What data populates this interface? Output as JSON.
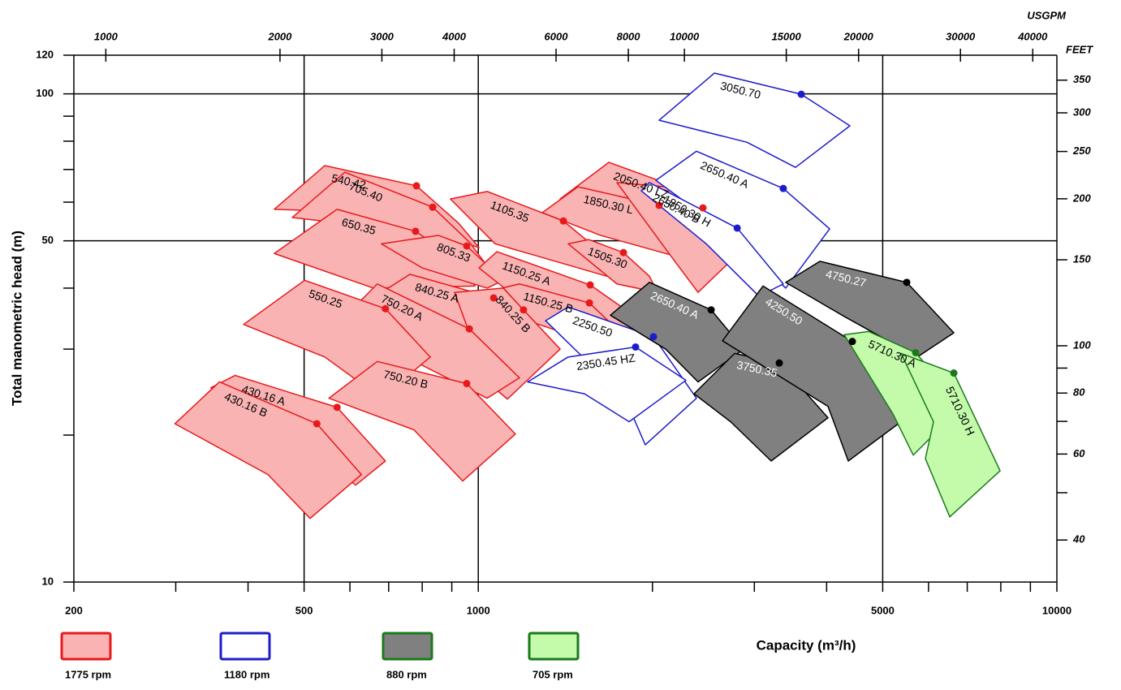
{
  "chart_data": {
    "type": "region",
    "xlabel": "Capacity  (m³/h)",
    "ylabel": "Total manometric head (m)",
    "x2label": "USGPM",
    "y2label": "FEET",
    "log_x": true,
    "log_y": true,
    "xlim": [
      200,
      10000
    ],
    "ylim": [
      10,
      120
    ],
    "xticks": [
      200,
      500,
      1000,
      5000,
      10000
    ],
    "xminor": [
      300,
      400,
      600,
      700,
      800,
      900,
      2000,
      3000,
      4000,
      6000,
      7000,
      8000,
      9000
    ],
    "yticks": [
      10,
      50,
      100,
      120
    ],
    "yminor": [
      20,
      30,
      40,
      60,
      70,
      80,
      90
    ],
    "xgrid": [
      500,
      1000,
      5000
    ],
    "ygrid": [
      50,
      100
    ],
    "x2lim": [
      880.6,
      44030
    ],
    "x2ticks": [
      1000,
      2000,
      3000,
      4000,
      6000,
      8000,
      10000,
      15000,
      20000,
      30000,
      40000
    ],
    "y2lim": [
      32.81,
      393.7
    ],
    "y2ticks": [
      40,
      60,
      80,
      100,
      150,
      200,
      250,
      300,
      350
    ],
    "y2minor": [
      50,
      70,
      90
    ],
    "groups": [
      {
        "name": "1775 rpm",
        "stroke": "#e8191b",
        "fill": "#f9b3b3",
        "label_color": "#000000"
      },
      {
        "name": "1180 rpm",
        "stroke": "#1c1ccc",
        "fill": "#ffffff",
        "label_color": "#000000"
      },
      {
        "name": "880 rpm",
        "stroke": "#000000",
        "fill": "#808080",
        "label_color": "#ffffff",
        "legend_stroke": "#1a7a1a"
      },
      {
        "name": "705 rpm",
        "stroke": "#1a7a1a",
        "fill": "#c3fbab",
        "label_color": "#000000"
      }
    ],
    "regions": [
      {
        "name": "540.42",
        "group": 0,
        "points": [
          [
            444,
            58.0
          ],
          [
            543,
            71.3
          ],
          [
            782,
            64.8
          ],
          [
            925,
            54.3
          ],
          [
            1003,
            48.4
          ],
          [
            680,
            57.1
          ]
        ],
        "point": [
          782,
          64.8
        ]
      },
      {
        "name": "705.40",
        "group": 0,
        "points": [
          [
            477,
            55.8
          ],
          [
            588,
            69.1
          ],
          [
            834,
            58.6
          ],
          [
            965,
            49.7
          ],
          [
            1042,
            44.0
          ],
          [
            703,
            52.9
          ]
        ],
        "point": [
          834,
          58.6
        ]
      },
      {
        "name": "650.35",
        "group": 0,
        "points": [
          [
            444,
            47.1
          ],
          [
            570,
            58.0
          ],
          [
            779,
            52.3
          ],
          [
            910,
            46.1
          ],
          [
            987,
            40.4
          ],
          [
            659,
            40.0
          ]
        ],
        "point": [
          779,
          52.3
        ]
      },
      {
        "name": "805.33",
        "group": 0,
        "points": [
          [
            680,
            49.3
          ],
          [
            853,
            51.3
          ],
          [
            955,
            48.8
          ],
          [
            1105,
            41.5
          ],
          [
            1036,
            40.0
          ],
          [
            800,
            44.0
          ]
        ],
        "point": [
          955,
          48.8
        ]
      },
      {
        "name": "1105.35",
        "group": 0,
        "points": [
          [
            895,
            60.9
          ],
          [
            1036,
            63.1
          ],
          [
            1403,
            54.9
          ],
          [
            1627,
            47.5
          ],
          [
            1764,
            41.5
          ],
          [
            1069,
            49.3
          ]
        ],
        "point": [
          1403,
          54.9
        ]
      },
      {
        "name": "1150.25 A",
        "group": 0,
        "points": [
          [
            1003,
            44.0
          ],
          [
            1077,
            47.5
          ],
          [
            1561,
            40.6
          ],
          [
            1913,
            34.3
          ],
          [
            1793,
            32.4
          ],
          [
            1178,
            37.8
          ]
        ],
        "point": [
          1561,
          40.6
        ]
      },
      {
        "name": "1150.25 B",
        "group": 0,
        "points": [
          [
            1052,
            39.5
          ],
          [
            1178,
            40.8
          ],
          [
            1556,
            37.3
          ],
          [
            1823,
            31.2
          ],
          [
            1736,
            29.8
          ],
          [
            1217,
            34.3
          ]
        ],
        "point": [
          1556,
          37.3
        ]
      },
      {
        "name": "1505.30",
        "group": 0,
        "points": [
          [
            1430,
            49.3
          ],
          [
            1551,
            50.3
          ],
          [
            1782,
            47.3
          ],
          [
            1976,
            42.3
          ],
          [
            2041,
            39.2
          ],
          [
            1736,
            40.8
          ]
        ],
        "point": [
          1782,
          47.3
        ]
      },
      {
        "name": "2050.40 LZ",
        "group": 0,
        "points": [
          [
            1385,
            60.9
          ],
          [
            1681,
            72.4
          ],
          [
            2398,
            62.1
          ],
          [
            2958,
            49.3
          ],
          [
            2559,
            44.0
          ],
          [
            1976,
            53.3
          ]
        ],
        "point": [
          2054,
          59.1
        ]
      },
      {
        "name": "1850.30 L",
        "group": 0,
        "points": [
          [
            1290,
            57.1
          ],
          [
            1487,
            64.5
          ],
          [
            2054,
            59.1
          ],
          [
            2322,
            51.3
          ],
          [
            2177,
            46.6
          ],
          [
            1627,
            51.3
          ]
        ]
      },
      {
        "name": "1850.30 H",
        "group": 0,
        "points": [
          [
            1736,
            65.8
          ],
          [
            2108,
            64.5
          ],
          [
            2445,
            58.4
          ],
          [
            2931,
            49.3
          ],
          [
            2398,
            39.2
          ],
          [
            2177,
            45.7
          ]
        ],
        "point": [
          2445,
          58.4
        ]
      },
      {
        "name": "840.25 A",
        "group": 0,
        "points": [
          [
            648,
            37.8
          ],
          [
            762,
            42.7
          ],
          [
            1063,
            38.2
          ],
          [
            1257,
            31.2
          ],
          [
            1105,
            27.8
          ],
          [
            826,
            32.4
          ]
        ],
        "point": [
          1063,
          38.2
        ]
      },
      {
        "name": "840.25 B",
        "group": 0,
        "points": [
          [
            910,
            39.2
          ],
          [
            1105,
            40.0
          ],
          [
            1197,
            36.1
          ],
          [
            1385,
            30.0
          ],
          [
            1123,
            23.7
          ],
          [
            1036,
            25.7
          ]
        ],
        "point": [
          1197,
          36.1
        ]
      },
      {
        "name": "750.20 A",
        "group": 0,
        "points": [
          [
            579,
            34.3
          ],
          [
            669,
            40.8
          ],
          [
            965,
            33.0
          ],
          [
            1178,
            26.2
          ],
          [
            1036,
            23.8
          ],
          [
            750,
            28.9
          ]
        ],
        "point": [
          965,
          33.0
        ]
      },
      {
        "name": "550.25",
        "group": 0,
        "points": [
          [
            393,
            33.7
          ],
          [
            501,
            41.5
          ],
          [
            691,
            36.3
          ],
          [
            826,
            28.9
          ],
          [
            680,
            23.8
          ],
          [
            543,
            28.9
          ]
        ],
        "point": [
          691,
          36.3
        ]
      },
      {
        "name": "750.20 B",
        "group": 0,
        "points": [
          [
            552,
            23.8
          ],
          [
            669,
            28.3
          ],
          [
            955,
            25.5
          ],
          [
            1159,
            20.1
          ],
          [
            940,
            16.1
          ],
          [
            774,
            20.5
          ]
        ],
        "point": [
          955,
          25.5
        ]
      },
      {
        "name": "430.16 A",
        "group": 0,
        "points": [
          [
            345,
            25.0
          ],
          [
            380,
            26.5
          ],
          [
            570,
            22.8
          ],
          [
            691,
            17.7
          ],
          [
            614,
            15.8
          ],
          [
            462,
            20.5
          ]
        ],
        "point": [
          570,
          22.8
        ]
      },
      {
        "name": "430.16 B",
        "group": 0,
        "points": [
          [
            299,
            21.1
          ],
          [
            357,
            25.7
          ],
          [
            526,
            21.1
          ],
          [
            628,
            16.6
          ],
          [
            512,
            13.5
          ],
          [
            433,
            16.6
          ]
        ],
        "point": [
          526,
          21.1
        ]
      },
      {
        "name": "3050.70",
        "group": 1,
        "points": [
          [
            2054,
            88.3
          ],
          [
            2559,
            110.3
          ],
          [
            3616,
            99.8
          ],
          [
            4388,
            86.0
          ],
          [
            3534,
            70.7
          ],
          [
            2912,
            79.6
          ]
        ],
        "point": [
          3616,
          99.8
        ]
      },
      {
        "name": "2650.40 A",
        "group": 1,
        "points": [
          [
            2028,
            66.5
          ],
          [
            2383,
            76.3
          ],
          [
            3366,
            64.0
          ],
          [
            4048,
            52.9
          ],
          [
            3399,
            40.0
          ],
          [
            2729,
            51.3
          ]
        ],
        "point": [
          3366,
          64.0
        ]
      },
      {
        "name": "2650.40 B",
        "group": 1,
        "points": [
          [
            1913,
            63.3
          ],
          [
            1976,
            65.8
          ],
          [
            2802,
            53.1
          ],
          [
            3366,
            40.8
          ],
          [
            3056,
            38.5
          ],
          [
            2477,
            49.3
          ]
        ],
        "point": [
          2802,
          53.1
        ]
      },
      {
        "name": "2250.50",
        "group": 1,
        "points": [
          [
            1307,
            34.3
          ],
          [
            1430,
            36.6
          ],
          [
            2008,
            31.8
          ],
          [
            2383,
            23.8
          ],
          [
            1944,
            19.1
          ],
          [
            1793,
            23.8
          ]
        ],
        "point": [
          2008,
          31.8
        ]
      },
      {
        "name": "2350.45 HZ",
        "group": 1,
        "points": [
          [
            1217,
            25.7
          ],
          [
            1430,
            28.9
          ],
          [
            1870,
            30.3
          ],
          [
            2285,
            25.9
          ],
          [
            1823,
            21.3
          ],
          [
            1526,
            24.3
          ]
        ],
        "point": [
          1870,
          30.3
        ]
      },
      {
        "name": "2650.40 A",
        "group": 2,
        "points": [
          [
            1692,
            35.2
          ],
          [
            1976,
            41.1
          ],
          [
            2526,
            36.1
          ],
          [
            2875,
            30.0
          ],
          [
            2398,
            25.7
          ],
          [
            2108,
            30.0
          ]
        ],
        "point": [
          2526,
          36.1
        ]
      },
      {
        "name": "3750.35",
        "group": 2,
        "points": [
          [
            2360,
            24.3
          ],
          [
            2774,
            29.4
          ],
          [
            3313,
            28.1
          ],
          [
            4022,
            21.7
          ],
          [
            3208,
            17.7
          ],
          [
            2729,
            21.3
          ]
        ],
        "point": [
          3313,
          28.1
        ]
      },
      {
        "name": "4250.50",
        "group": 2,
        "points": [
          [
            2643,
            31.2
          ],
          [
            3106,
            40.4
          ],
          [
            4431,
            31.1
          ],
          [
            5379,
            21.3
          ],
          [
            4360,
            17.7
          ],
          [
            4022,
            22.9
          ]
        ],
        "point": [
          4431,
          31.1
        ]
      },
      {
        "name": "4750.27",
        "group": 2,
        "points": [
          [
            3399,
            41.1
          ],
          [
            3894,
            45.4
          ],
          [
            5502,
            41.1
          ],
          [
            6636,
            32.4
          ],
          [
            5737,
            28.9
          ],
          [
            4290,
            35.0
          ]
        ],
        "point": [
          5502,
          41.1
        ]
      },
      {
        "name": "5710.30 A",
        "group": 3,
        "points": [
          [
            4290,
            32.1
          ],
          [
            4727,
            32.6
          ],
          [
            5700,
            29.5
          ],
          [
            6854,
            22.9
          ],
          [
            5646,
            18.2
          ],
          [
            5208,
            22.1
          ]
        ],
        "point": [
          5700,
          29.5
        ]
      },
      {
        "name": "5710.30 H",
        "group": 3,
        "points": [
          [
            5379,
            29.4
          ],
          [
            6636,
            26.8
          ],
          [
            7978,
            16.9
          ],
          [
            6530,
            13.6
          ],
          [
            5926,
            17.9
          ],
          [
            6120,
            21.3
          ]
        ],
        "point": [
          6636,
          26.8
        ]
      }
    ]
  }
}
